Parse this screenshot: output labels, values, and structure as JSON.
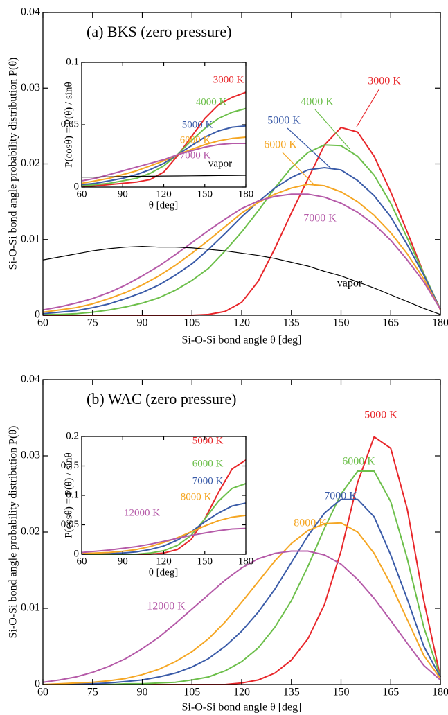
{
  "chart_data": [
    {
      "type": "line",
      "title": "(a) BKS (zero pressure)",
      "xlabel": "Si-O-Si bond angle  θ  [deg]",
      "ylabel": "Si-O-Si bond angle probability distribution  P(θ)",
      "xlim": [
        60,
        180
      ],
      "ylim": [
        0,
        0.04
      ],
      "xticks": [
        60,
        75,
        90,
        105,
        120,
        135,
        150,
        165,
        180
      ],
      "yticks": [
        0,
        0.01,
        0.02,
        0.03,
        0.04
      ],
      "x": [
        60,
        65,
        70,
        75,
        80,
        85,
        90,
        95,
        100,
        105,
        110,
        115,
        120,
        125,
        130,
        135,
        140,
        145,
        150,
        155,
        160,
        165,
        170,
        175,
        180
      ],
      "series": [
        {
          "name": "3000 K",
          "color": "#e8262a",
          "values": [
            0,
            0,
            0,
            0,
            0,
            0,
            0,
            0,
            0,
            0,
            0.0001,
            0.0005,
            0.0017,
            0.0045,
            0.0088,
            0.0135,
            0.018,
            0.0225,
            0.0248,
            0.0242,
            0.021,
            0.0163,
            0.011,
            0.0055,
            0.0007
          ]
        },
        {
          "name": "4000 K",
          "color": "#6cbf4a",
          "values": [
            0.0001,
            0.0001,
            0.0002,
            0.0004,
            0.0007,
            0.0011,
            0.0016,
            0.0023,
            0.0033,
            0.0046,
            0.0062,
            0.0085,
            0.011,
            0.0138,
            0.0168,
            0.0195,
            0.0215,
            0.0225,
            0.0224,
            0.021,
            0.0185,
            0.0148,
            0.0102,
            0.0055,
            0.0008
          ]
        },
        {
          "name": "5000 K",
          "color": "#3a5ba8",
          "values": [
            0.0002,
            0.0004,
            0.0006,
            0.001,
            0.0015,
            0.0022,
            0.003,
            0.004,
            0.0053,
            0.0068,
            0.0087,
            0.0108,
            0.013,
            0.015,
            0.0168,
            0.0182,
            0.0192,
            0.0195,
            0.0192,
            0.0178,
            0.0158,
            0.013,
            0.0093,
            0.0053,
            0.0008
          ]
        },
        {
          "name": "6000 K",
          "color": "#f5a623",
          "values": [
            0.0004,
            0.0007,
            0.001,
            0.0015,
            0.0022,
            0.003,
            0.004,
            0.0052,
            0.0066,
            0.0082,
            0.0099,
            0.0117,
            0.0135,
            0.0149,
            0.016,
            0.0168,
            0.0173,
            0.0171,
            0.0163,
            0.015,
            0.0132,
            0.0109,
            0.0081,
            0.0048,
            0.0008
          ]
        },
        {
          "name": "7000 K",
          "color": "#b55aa8",
          "values": [
            0.0007,
            0.0011,
            0.0016,
            0.0022,
            0.003,
            0.004,
            0.0052,
            0.0065,
            0.008,
            0.0096,
            0.0112,
            0.0127,
            0.0141,
            0.0151,
            0.0157,
            0.016,
            0.016,
            0.0156,
            0.0148,
            0.0136,
            0.012,
            0.0099,
            0.0073,
            0.0044,
            0.0008
          ]
        },
        {
          "name": "vapor",
          "color": "#000000",
          "values": [
            0.0073,
            0.0077,
            0.0081,
            0.0085,
            0.0088,
            0.009,
            0.0091,
            0.009,
            0.009,
            0.0089,
            0.0087,
            0.0085,
            0.0082,
            0.0079,
            0.0075,
            0.007,
            0.0065,
            0.0058,
            0.0052,
            0.0044,
            0.0036,
            0.0027,
            0.0018,
            0.0009,
            0.0001
          ]
        }
      ]
    },
    {
      "type": "line",
      "xlabel": "θ [deg]",
      "ylabel": "P(cosθ) = P(θ) / sinθ",
      "xlim": [
        60,
        180
      ],
      "ylim": [
        0,
        0.1
      ],
      "xticks": [
        60,
        90,
        120,
        150,
        180
      ],
      "yticks": [
        0,
        0.05,
        0.1
      ],
      "x": [
        60,
        70,
        80,
        90,
        100,
        110,
        120,
        130,
        140,
        150,
        160,
        170,
        180
      ],
      "series": [
        {
          "name": "3000 K",
          "color": "#e8262a",
          "values": [
            0.0005,
            0.001,
            0.002,
            0.003,
            0.004,
            0.006,
            0.012,
            0.025,
            0.04,
            0.055,
            0.066,
            0.072,
            0.076
          ]
        },
        {
          "name": "4000 K",
          "color": "#6cbf4a",
          "values": [
            0.001,
            0.002,
            0.003,
            0.005,
            0.007,
            0.011,
            0.017,
            0.026,
            0.037,
            0.047,
            0.055,
            0.06,
            0.063
          ]
        },
        {
          "name": "5000 K",
          "color": "#3a5ba8",
          "values": [
            0.002,
            0.003,
            0.005,
            0.007,
            0.01,
            0.014,
            0.019,
            0.026,
            0.033,
            0.04,
            0.045,
            0.048,
            0.049
          ]
        },
        {
          "name": "6000 K",
          "color": "#f5a623",
          "values": [
            0.003,
            0.005,
            0.007,
            0.01,
            0.013,
            0.017,
            0.021,
            0.026,
            0.03,
            0.034,
            0.037,
            0.039,
            0.04
          ]
        },
        {
          "name": "7000 K",
          "color": "#b55aa8",
          "values": [
            0.005,
            0.007,
            0.01,
            0.013,
            0.016,
            0.019,
            0.022,
            0.026,
            0.029,
            0.032,
            0.034,
            0.035,
            0.035
          ]
        },
        {
          "name": "vapor",
          "color": "#000000",
          "values": [
            0.008,
            0.008,
            0.0082,
            0.0084,
            0.0086,
            0.0087,
            0.0088,
            0.0089,
            0.009,
            0.0091,
            0.0092,
            0.0093,
            0.0094
          ]
        }
      ]
    },
    {
      "type": "line",
      "title": "(b) WAC (zero pressure)",
      "xlabel": "Si-O-Si bond angle  θ  [deg]",
      "ylabel": "Si-O-Si bond angle probability distribution  P(θ)",
      "xlim": [
        60,
        180
      ],
      "ylim": [
        0,
        0.04
      ],
      "xticks": [
        60,
        75,
        90,
        105,
        120,
        135,
        150,
        165,
        180
      ],
      "yticks": [
        0,
        0.01,
        0.02,
        0.03,
        0.04
      ],
      "x": [
        60,
        65,
        70,
        75,
        80,
        85,
        90,
        95,
        100,
        105,
        110,
        115,
        120,
        125,
        130,
        135,
        140,
        145,
        150,
        155,
        160,
        165,
        170,
        175,
        180
      ],
      "series": [
        {
          "name": "5000 K",
          "color": "#e8262a",
          "values": [
            0,
            0,
            0,
            0,
            0,
            0,
            0,
            0,
            0,
            0,
            0,
            0,
            0.0002,
            0.0006,
            0.0015,
            0.0032,
            0.006,
            0.0105,
            0.0175,
            0.0265,
            0.0325,
            0.031,
            0.023,
            0.011,
            0.001
          ]
        },
        {
          "name": "6000 K",
          "color": "#6cbf4a",
          "values": [
            0,
            0,
            0,
            0,
            0,
            0.0001,
            0.0001,
            0.0002,
            0.0003,
            0.0006,
            0.001,
            0.0018,
            0.003,
            0.0048,
            0.0075,
            0.011,
            0.0155,
            0.0205,
            0.025,
            0.028,
            0.028,
            0.024,
            0.0165,
            0.0075,
            0.001
          ]
        },
        {
          "name": "7000 K",
          "color": "#3a5ba8",
          "values": [
            0,
            0,
            0.0001,
            0.0001,
            0.0002,
            0.0004,
            0.0006,
            0.001,
            0.0015,
            0.0023,
            0.0034,
            0.005,
            0.007,
            0.0095,
            0.0125,
            0.016,
            0.0195,
            0.0225,
            0.0243,
            0.0243,
            0.022,
            0.017,
            0.0112,
            0.005,
            0.001
          ]
        },
        {
          "name": "8000 K",
          "color": "#f5a623",
          "values": [
            0,
            0.0001,
            0.0002,
            0.0003,
            0.0005,
            0.0008,
            0.0013,
            0.002,
            0.003,
            0.0043,
            0.006,
            0.0082,
            0.0108,
            0.0135,
            0.0162,
            0.0185,
            0.0202,
            0.0211,
            0.0212,
            0.02,
            0.0172,
            0.0132,
            0.0085,
            0.0038,
            0.0008
          ]
        },
        {
          "name": "12000 K",
          "color": "#b55aa8",
          "values": [
            0.0003,
            0.0006,
            0.001,
            0.0016,
            0.0024,
            0.0034,
            0.0047,
            0.0062,
            0.008,
            0.0099,
            0.0118,
            0.0137,
            0.0153,
            0.0165,
            0.0172,
            0.0175,
            0.0175,
            0.017,
            0.0158,
            0.0138,
            0.0113,
            0.0084,
            0.0054,
            0.0025,
            0.0006
          ]
        }
      ]
    },
    {
      "type": "line",
      "xlabel": "θ [deg]",
      "ylabel": "P(cosθ) = P(θ) / sinθ",
      "xlim": [
        60,
        180
      ],
      "ylim": [
        0,
        0.2
      ],
      "xticks": [
        60,
        90,
        120,
        150,
        180
      ],
      "yticks": [
        0,
        0.05,
        0.1,
        0.15,
        0.2
      ],
      "x": [
        60,
        70,
        80,
        90,
        100,
        110,
        120,
        130,
        140,
        150,
        160,
        170,
        180
      ],
      "series": [
        {
          "name": "5000 K",
          "color": "#e8262a",
          "values": [
            0,
            0,
            0,
            0,
            0,
            0,
            0.002,
            0.008,
            0.025,
            0.06,
            0.105,
            0.145,
            0.16
          ]
        },
        {
          "name": "6000 K",
          "color": "#6cbf4a",
          "values": [
            0,
            0,
            0,
            0,
            0,
            0.002,
            0.006,
            0.015,
            0.032,
            0.06,
            0.09,
            0.112,
            0.12
          ]
        },
        {
          "name": "7000 K",
          "color": "#3a5ba8",
          "values": [
            0,
            0.001,
            0.001,
            0.002,
            0.004,
            0.008,
            0.014,
            0.024,
            0.038,
            0.055,
            0.07,
            0.082,
            0.087
          ]
        },
        {
          "name": "8000 K",
          "color": "#f5a623",
          "values": [
            0.001,
            0.002,
            0.003,
            0.005,
            0.008,
            0.013,
            0.02,
            0.028,
            0.038,
            0.048,
            0.057,
            0.063,
            0.066
          ]
        },
        {
          "name": "12000 K",
          "color": "#b55aa8",
          "values": [
            0.003,
            0.005,
            0.007,
            0.01,
            0.013,
            0.017,
            0.022,
            0.027,
            0.032,
            0.036,
            0.04,
            0.043,
            0.044
          ]
        }
      ]
    }
  ]
}
